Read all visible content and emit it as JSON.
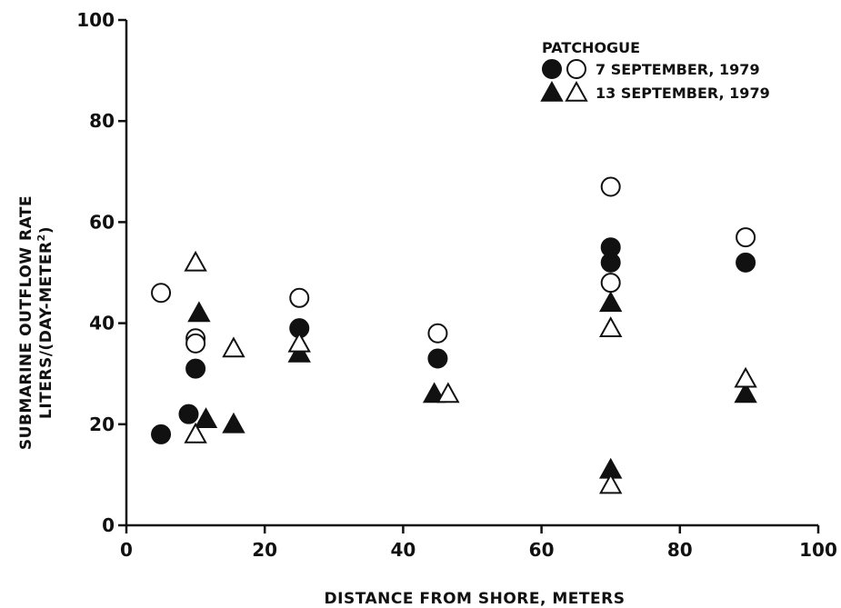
{
  "chart_data": {
    "type": "scatter",
    "title": "",
    "xlabel": "DISTANCE FROM SHORE, METERS",
    "ylabel_line1": "SUBMARINE OUTFLOW RATE",
    "ylabel_line2_main": "LITERS/(DAY-METER",
    "ylabel_line2_sup": "2",
    "ylabel_line2_end": ")",
    "xlim": [
      0,
      100
    ],
    "ylim": [
      0,
      100
    ],
    "xticks": [
      "0",
      "20",
      "40",
      "60",
      "80",
      "100"
    ],
    "yticks": [
      "0",
      "20",
      "40",
      "60",
      "80",
      "100"
    ],
    "grid": false,
    "legend_position": "top-right",
    "legend_title": "PATCHOGUE",
    "legend_entries": [
      {
        "label": "7 SEPTEMBER, 1979",
        "markers": [
          "filled-circle",
          "open-circle"
        ]
      },
      {
        "label": "13 SEPTEMBER, 1979",
        "markers": [
          "filled-triangle",
          "open-triangle"
        ]
      }
    ],
    "series": [
      {
        "marker": "filled-circle",
        "points": [
          [
            5,
            18
          ],
          [
            9,
            22
          ],
          [
            10,
            31
          ],
          [
            25,
            39
          ],
          [
            45,
            33
          ],
          [
            70,
            55
          ],
          [
            70,
            52
          ],
          [
            89.5,
            52
          ]
        ]
      },
      {
        "marker": "open-circle",
        "points": [
          [
            5,
            46
          ],
          [
            10,
            37
          ],
          [
            10,
            36
          ],
          [
            25,
            45
          ],
          [
            45,
            38
          ],
          [
            70,
            67
          ],
          [
            70,
            48
          ],
          [
            89.5,
            57
          ]
        ]
      },
      {
        "marker": "filled-triangle",
        "points": [
          [
            10.5,
            42
          ],
          [
            11.5,
            21
          ],
          [
            15.5,
            20
          ],
          [
            25,
            34
          ],
          [
            44.5,
            26
          ],
          [
            70,
            44
          ],
          [
            70,
            11
          ],
          [
            89.5,
            26
          ]
        ]
      },
      {
        "marker": "open-triangle",
        "points": [
          [
            10,
            52
          ],
          [
            10,
            18
          ],
          [
            15.5,
            35
          ],
          [
            25,
            36
          ],
          [
            46.5,
            26
          ],
          [
            70,
            39
          ],
          [
            70,
            8
          ],
          [
            89.5,
            29
          ]
        ]
      }
    ]
  }
}
